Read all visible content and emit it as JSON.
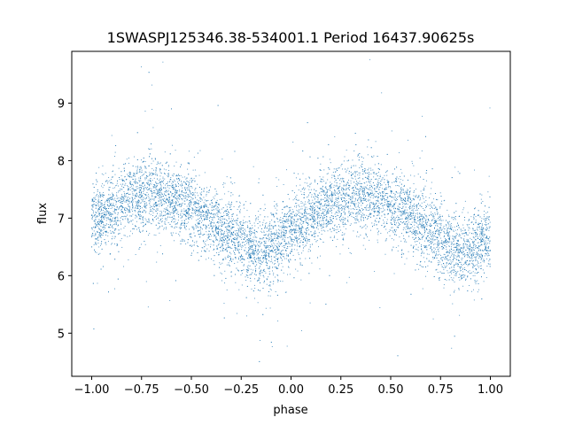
{
  "chart_data": {
    "type": "scatter",
    "title": "1SWASPJ125346.38-534001.1 Period 16437.90625s",
    "xlabel": "phase",
    "ylabel": "flux",
    "xlim": [
      -1.1,
      1.1
    ],
    "ylim": [
      4.25,
      9.9
    ],
    "xticks": [
      -1.0,
      -0.75,
      -0.5,
      -0.25,
      0.0,
      0.25,
      0.5,
      0.75,
      1.0
    ],
    "xtick_labels": [
      "−1.00",
      "−0.75",
      "−0.50",
      "−0.25",
      "0.00",
      "0.25",
      "0.50",
      "0.75",
      "1.00"
    ],
    "yticks": [
      5,
      6,
      7,
      8,
      9
    ],
    "ytick_labels": [
      "5",
      "6",
      "7",
      "8",
      "9"
    ],
    "grid": false,
    "marker_color": "#1f77b4",
    "series": [
      {
        "x": [
          -1.0,
          -0.9,
          -0.8,
          -0.7,
          -0.6,
          -0.5,
          -0.4,
          -0.3,
          -0.2,
          -0.15,
          -0.1,
          0.0,
          0.1,
          0.2,
          0.3,
          0.4,
          0.5,
          0.6,
          0.7,
          0.8,
          0.85,
          0.9,
          1.0
        ],
        "y": [
          6.95,
          7.15,
          7.35,
          7.45,
          7.35,
          7.15,
          6.95,
          6.7,
          6.45,
          6.4,
          6.5,
          6.75,
          7.0,
          7.25,
          7.4,
          7.4,
          7.2,
          7.0,
          6.75,
          6.5,
          6.4,
          6.5,
          6.7
        ]
      }
    ]
  }
}
